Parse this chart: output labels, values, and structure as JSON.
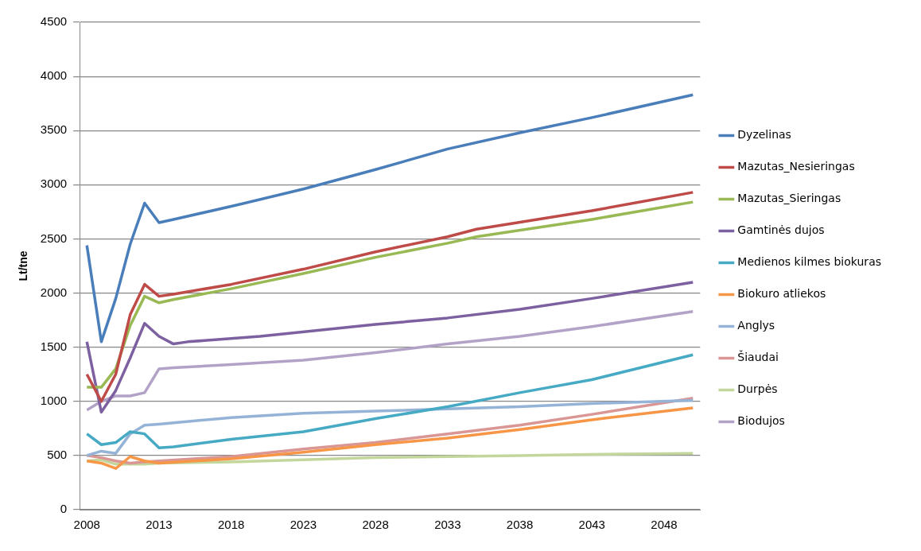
{
  "chart_data": {
    "type": "line",
    "ylabel": "Lt/tne",
    "xlim": [
      2007.5,
      2050.5
    ],
    "xticks": [
      2008,
      2013,
      2018,
      2023,
      2028,
      2033,
      2038,
      2043,
      2048
    ],
    "ylim": [
      0,
      4500
    ],
    "yticks": [
      0,
      500,
      1000,
      1500,
      2000,
      2500,
      3000,
      3500,
      4000,
      4500
    ],
    "grid": "y",
    "legend": "right",
    "marker": "none",
    "line_style": "solid",
    "series": [
      {
        "name": "Dyzelinas",
        "color": "#4a7ebb",
        "x": [
          2008,
          2009,
          2010,
          2011,
          2012,
          2013,
          2014,
          2018,
          2023,
          2028,
          2033,
          2038,
          2043,
          2050
        ],
        "values": [
          2440,
          1550,
          1950,
          2450,
          2830,
          2650,
          2680,
          2800,
          2960,
          3140,
          3330,
          3480,
          3620,
          3830
        ]
      },
      {
        "name": "Mazutas_Nesieringas",
        "color": "#be4b48",
        "x": [
          2008,
          2009,
          2010,
          2011,
          2012,
          2013,
          2014,
          2018,
          2023,
          2028,
          2033,
          2035,
          2043,
          2050
        ],
        "values": [
          1250,
          1000,
          1250,
          1800,
          2080,
          1970,
          1990,
          2080,
          2220,
          2380,
          2520,
          2590,
          2760,
          2930
        ]
      },
      {
        "name": "Mazutas_Sieringas",
        "color": "#98b954",
        "x": [
          2008,
          2009,
          2010,
          2011,
          2012,
          2013,
          2014,
          2018,
          2023,
          2028,
          2033,
          2035,
          2043,
          2050
        ],
        "values": [
          1130,
          1130,
          1300,
          1700,
          1970,
          1910,
          1940,
          2040,
          2180,
          2330,
          2460,
          2520,
          2680,
          2840
        ]
      },
      {
        "name": "Gamtinės dujos",
        "color": "#7d60a0",
        "x": [
          2008,
          2009,
          2010,
          2011,
          2012,
          2013,
          2014,
          2015,
          2020,
          2028,
          2033,
          2038,
          2043,
          2050
        ],
        "values": [
          1550,
          900,
          1100,
          1400,
          1720,
          1600,
          1530,
          1550,
          1600,
          1710,
          1770,
          1850,
          1950,
          2100
        ]
      },
      {
        "name": "Medienos kilmes biokuras",
        "color": "#46aac5",
        "x": [
          2008,
          2009,
          2010,
          2011,
          2012,
          2013,
          2014,
          2018,
          2023,
          2028,
          2033,
          2038,
          2043,
          2050
        ],
        "values": [
          700,
          600,
          620,
          720,
          700,
          570,
          580,
          650,
          720,
          840,
          950,
          1080,
          1200,
          1430
        ]
      },
      {
        "name": "Biokuro atliekos",
        "color": "#f79646",
        "x": [
          2008,
          2009,
          2010,
          2011,
          2012,
          2013,
          2018,
          2023,
          2028,
          2033,
          2038,
          2043,
          2050
        ],
        "values": [
          450,
          430,
          380,
          490,
          450,
          430,
          470,
          530,
          600,
          660,
          740,
          830,
          940
        ]
      },
      {
        "name": "Anglys",
        "color": "#95b3d7",
        "x": [
          2008,
          2009,
          2010,
          2011,
          2012,
          2013,
          2018,
          2023,
          2028,
          2033,
          2038,
          2043,
          2050
        ],
        "values": [
          500,
          540,
          520,
          700,
          780,
          790,
          850,
          890,
          910,
          930,
          950,
          980,
          1010
        ]
      },
      {
        "name": "Šiaudai",
        "color": "#d99694",
        "x": [
          2008,
          2009,
          2010,
          2011,
          2012,
          2013,
          2018,
          2023,
          2028,
          2033,
          2038,
          2043,
          2050
        ],
        "values": [
          500,
          480,
          450,
          430,
          440,
          450,
          490,
          560,
          620,
          700,
          780,
          880,
          1030
        ]
      },
      {
        "name": "Durpės",
        "color": "#c3d69b",
        "x": [
          2008,
          2009,
          2010,
          2011,
          2012,
          2013,
          2018,
          2023,
          2028,
          2033,
          2038,
          2043,
          2050
        ],
        "values": [
          450,
          460,
          420,
          420,
          420,
          430,
          440,
          460,
          480,
          490,
          500,
          510,
          520
        ]
      },
      {
        "name": "Biodujos",
        "color": "#b3a2c7",
        "x": [
          2008,
          2009,
          2010,
          2011,
          2012,
          2013,
          2014,
          2018,
          2023,
          2028,
          2033,
          2038,
          2043,
          2050
        ],
        "values": [
          920,
          1000,
          1050,
          1050,
          1080,
          1300,
          1310,
          1340,
          1380,
          1450,
          1530,
          1600,
          1690,
          1830
        ]
      }
    ]
  }
}
